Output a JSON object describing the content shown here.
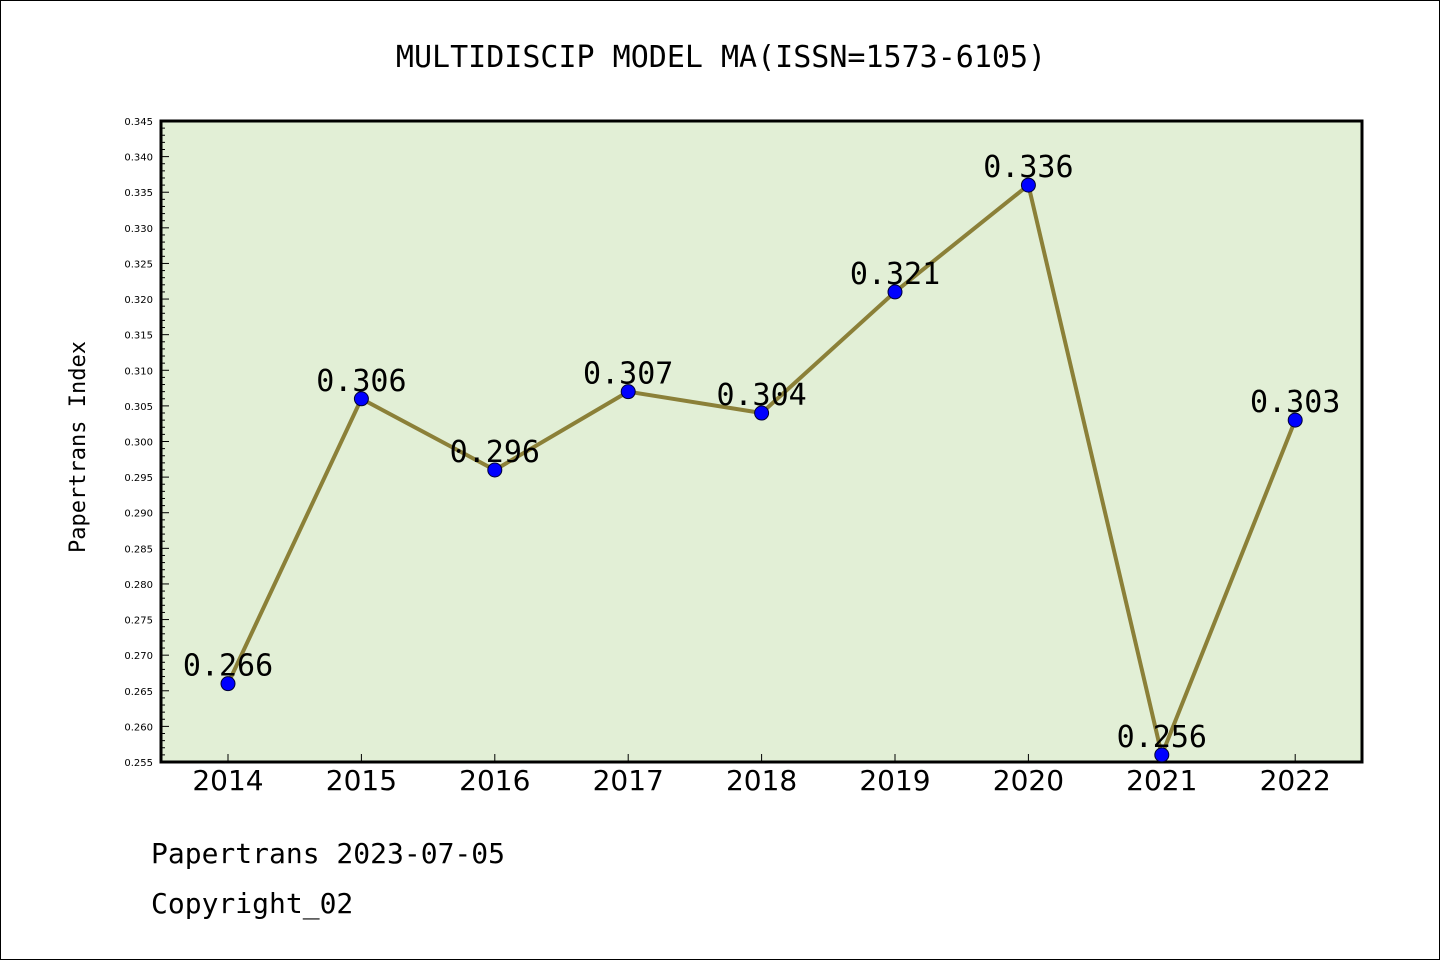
{
  "chart_data": {
    "type": "line",
    "title": "MULTIDISCIP MODEL MA(ISSN=1573-6105)",
    "xlabel": "",
    "ylabel": "Papertrans Index",
    "categories": [
      "2014",
      "2015",
      "2016",
      "2017",
      "2018",
      "2019",
      "2020",
      "2021",
      "2022"
    ],
    "series": [
      {
        "values": [
          0.266,
          0.306,
          0.296,
          0.307,
          0.304,
          0.321,
          0.336,
          0.256,
          0.303
        ],
        "labels": [
          "0.266",
          "0.306",
          "0.296",
          "0.307",
          "0.304",
          "0.321",
          "0.336",
          "0.256",
          "0.303"
        ]
      }
    ],
    "ylim": [
      0.255,
      0.345
    ],
    "yticks": [
      "0.255",
      "0.260",
      "0.265",
      "0.270",
      "0.275",
      "0.280",
      "0.285",
      "0.290",
      "0.295",
      "0.300",
      "0.305",
      "0.310",
      "0.315",
      "0.320",
      "0.325",
      "0.330",
      "0.335",
      "0.340",
      "0.345"
    ],
    "grid": false,
    "colors": {
      "plot_background": "#e2efd6",
      "line": "#8b8038",
      "marker": "#0000ff"
    }
  },
  "footer": {
    "line1": "Papertrans 2023-07-05",
    "line2": "Copyright_02"
  }
}
